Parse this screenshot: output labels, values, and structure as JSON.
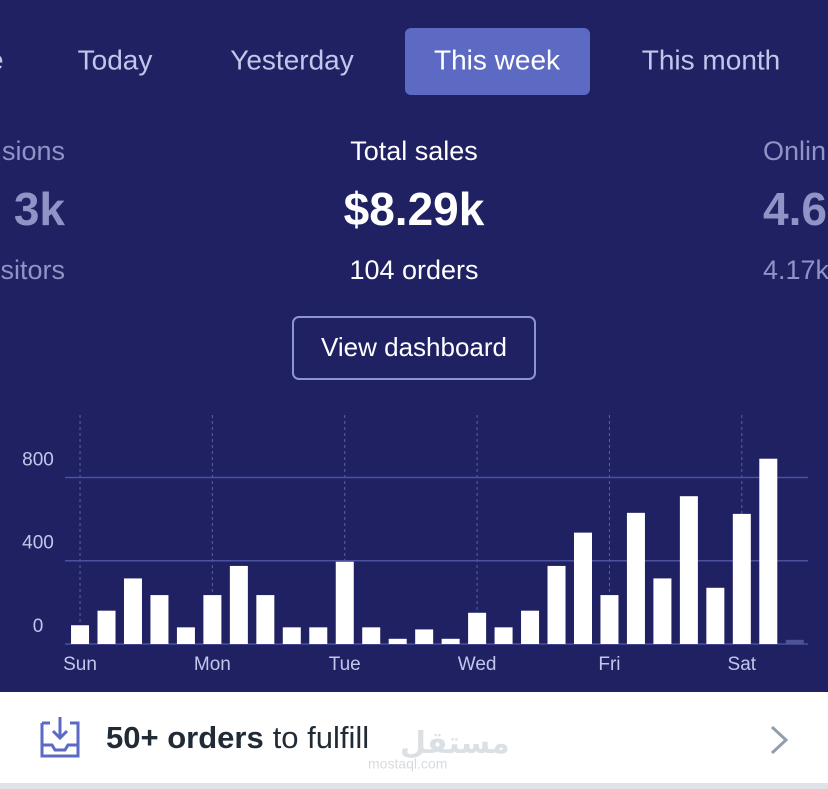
{
  "tabs": [
    "e",
    "Today",
    "Yesterday",
    "This week",
    "This month"
  ],
  "active_tab": 3,
  "stats": [
    {
      "label": "sions",
      "value": "3k",
      "sub": "sitors"
    },
    {
      "label": "Total sales",
      "value": "$8.29k",
      "sub": "104 orders"
    },
    {
      "label": "Onlin",
      "value": "4.6",
      "sub": "4.17k"
    }
  ],
  "button": "View dashboard",
  "chart_data": {
    "type": "bar",
    "categories": [
      "Sun",
      null,
      null,
      null,
      null,
      "Mon",
      null,
      null,
      null,
      null,
      "Tue",
      null,
      null,
      null,
      null,
      "Wed",
      null,
      null,
      null,
      null,
      "Fri",
      null,
      null,
      null,
      null,
      "Sat",
      null,
      null
    ],
    "values": [
      90,
      160,
      315,
      235,
      80,
      235,
      375,
      235,
      80,
      80,
      395,
      80,
      25,
      70,
      25,
      150,
      80,
      160,
      375,
      535,
      235,
      630,
      315,
      710,
      270,
      625,
      890,
      20
    ],
    "colors": [
      "#ffffff",
      "#ffffff",
      "#ffffff",
      "#ffffff",
      "#ffffff",
      "#ffffff",
      "#ffffff",
      "#ffffff",
      "#ffffff",
      "#ffffff",
      "#ffffff",
      "#ffffff",
      "#ffffff",
      "#ffffff",
      "#ffffff",
      "#ffffff",
      "#ffffff",
      "#ffffff",
      "#ffffff",
      "#ffffff",
      "#ffffff",
      "#ffffff",
      "#ffffff",
      "#ffffff",
      "#ffffff",
      "#ffffff",
      "#ffffff",
      "#4d5396"
    ],
    "ylim": [
      0,
      1100
    ],
    "yticks": [
      0,
      400,
      800
    ],
    "grid": true
  },
  "footer": {
    "strong": "50+ orders",
    "text": "to fulfill"
  },
  "watermark": {
    "arabic": "مستقل",
    "latin": "mostaql.com"
  }
}
